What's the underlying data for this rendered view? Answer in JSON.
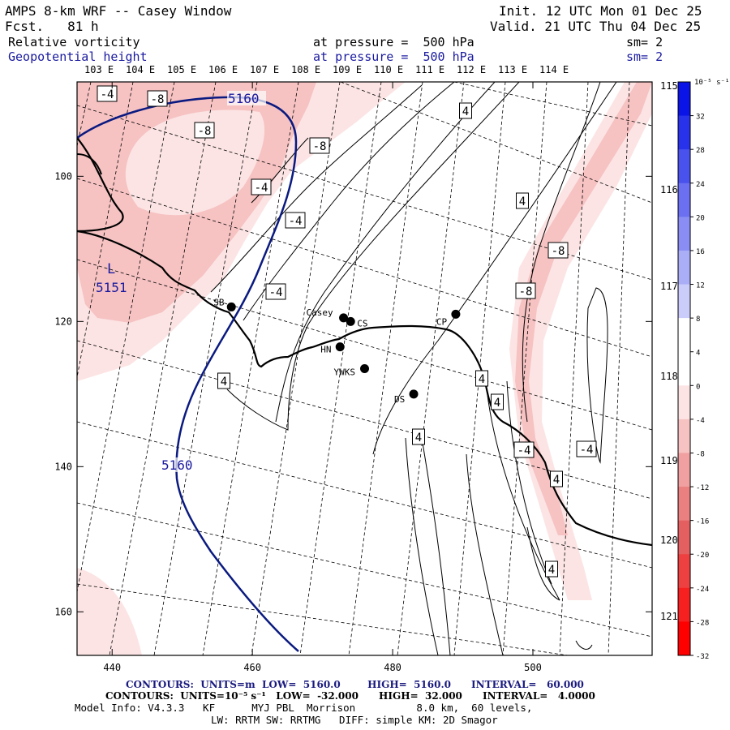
{
  "header": {
    "title": "AMPS 8-km WRF -- Casey Window",
    "forecast": "Fcst.   81 h",
    "init": "Init. 12 UTC Mon 01 Dec 25",
    "valid": "Valid. 21 UTC Thu 04 Dec 25",
    "field1_name": "Relative vorticity",
    "field1_level": "at pressure =  500 hPa",
    "field1_sm": "sm= 2",
    "field2_name": "Geopotential height",
    "field2_level": "at pressure =  500 hPa",
    "field2_sm": "sm= 2"
  },
  "map": {
    "top_lon_labels": [
      "103 E",
      "104 E",
      "105 E",
      "106 E",
      "107 E",
      "108 E",
      "109 E",
      "110 E",
      "111 E",
      "112 E",
      "113 E",
      "114 E"
    ],
    "right_lon_labels": [
      "115 E",
      "116 E",
      "117 E",
      "118 E",
      "119 E",
      "120 E",
      "121 E"
    ],
    "x_ticks": [
      440,
      460,
      480,
      500
    ],
    "y_ticks": [
      100,
      120,
      140,
      160
    ],
    "x_range": [
      435,
      517
    ],
    "y_range": [
      87,
      166
    ],
    "low_label": "L",
    "low_value": "5151",
    "height_labels": [
      "5160",
      "5160"
    ],
    "vorticity_labels": [
      "-4",
      "-8",
      "-8",
      "-8",
      "-4",
      "-4",
      "-4",
      "4",
      "4",
      "4",
      "4",
      "-8",
      "-8",
      "4",
      "-4",
      "-4",
      "4",
      "4",
      "4"
    ],
    "stations": [
      {
        "name": "SB",
        "x": 457,
        "y": 118
      },
      {
        "name": "Casey",
        "x": 473,
        "y": 119.5
      },
      {
        "name": "CS",
        "x": 474,
        "y": 120
      },
      {
        "name": "CP",
        "x": 489,
        "y": 119
      },
      {
        "name": "HN",
        "x": 472.5,
        "y": 123.5
      },
      {
        "name": "YWKS",
        "x": 476,
        "y": 126.5
      },
      {
        "name": "DS",
        "x": 483,
        "y": 130
      }
    ]
  },
  "colorbar": {
    "unit": "10⁻⁵ s⁻¹",
    "labels": [
      "32",
      "28",
      "24",
      "20",
      "16",
      "12",
      "8",
      "4",
      "0",
      "-4",
      "-8",
      "-12",
      "-16",
      "-20",
      "-24",
      "-28",
      "-32"
    ],
    "colors": [
      "#0a14e6",
      "#2832ea",
      "#4a52ee",
      "#6a70f1",
      "#8a8ef4",
      "#aaaef7",
      "#cacdfa",
      "#ffffff",
      "#ffffff",
      "#fce4e4",
      "#f6c2c2",
      "#f0a0a0",
      "#ea8080",
      "#e46060",
      "#ee4040",
      "#f62020",
      "#ff0000"
    ]
  },
  "footer": {
    "contours1": "CONTOURS:  UNITS=m  LOW=  5160.0        HIGH=  5160.0      INTERVAL=   60.000",
    "contours2": "CONTOURS:  UNITS=10⁻⁵ s⁻¹   LOW=  -32.000      HIGH=  32.000      INTERVAL=   4.0000",
    "model_info": "Model Info: V4.3.3   KF      MYJ PBL  Morrison          8.0 km,  60 levels,",
    "physics": "LW: RRTM SW: RRTMG   DIFF: simple KM: 2D Smagor"
  }
}
